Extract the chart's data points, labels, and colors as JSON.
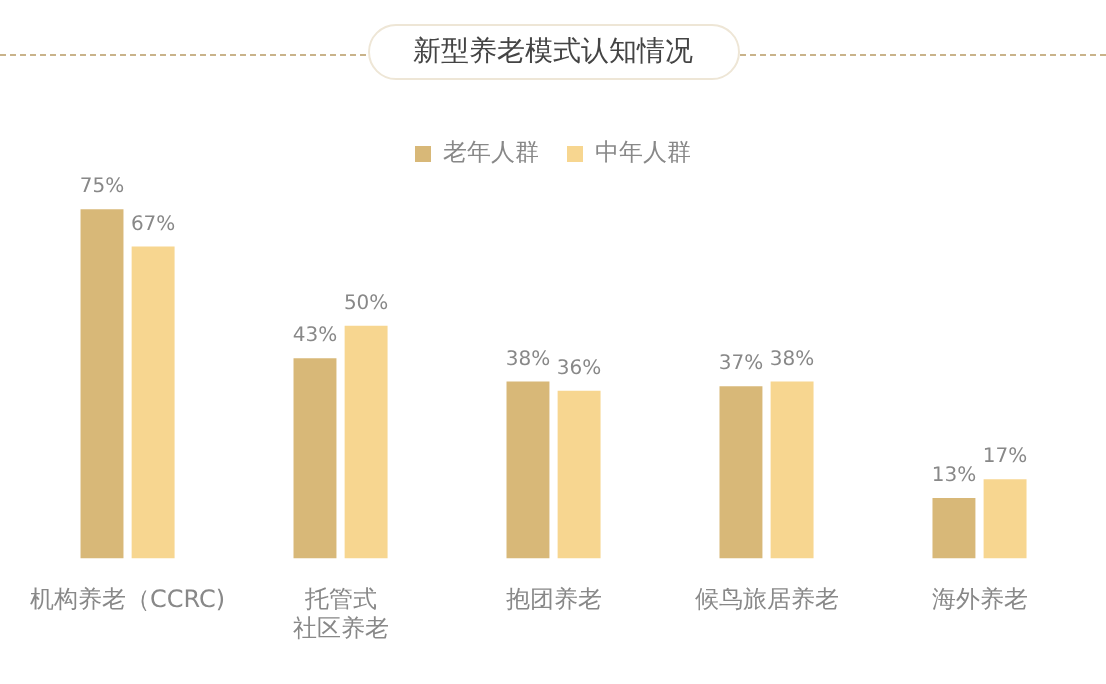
{
  "chart_data": {
    "type": "bar",
    "title": "新型养老模式认知情况",
    "categories": [
      "机构养老（CCRC)",
      "托管式社区养老",
      "抱团养老",
      "候鸟旅居养老",
      "海外养老"
    ],
    "series": [
      {
        "name": "老年人群",
        "color": "#d8b878",
        "values": [
          75,
          43,
          38,
          37,
          13
        ],
        "value_labels": [
          "75%",
          "43%",
          "38%",
          "37%",
          "13%"
        ]
      },
      {
        "name": "中年人群",
        "color": "#f7d690",
        "values": [
          67,
          50,
          36,
          38,
          17
        ],
        "value_labels": [
          "67%",
          "50%",
          "36%",
          "38%",
          "17%"
        ]
      }
    ],
    "legend": "top",
    "grid": false
  }
}
